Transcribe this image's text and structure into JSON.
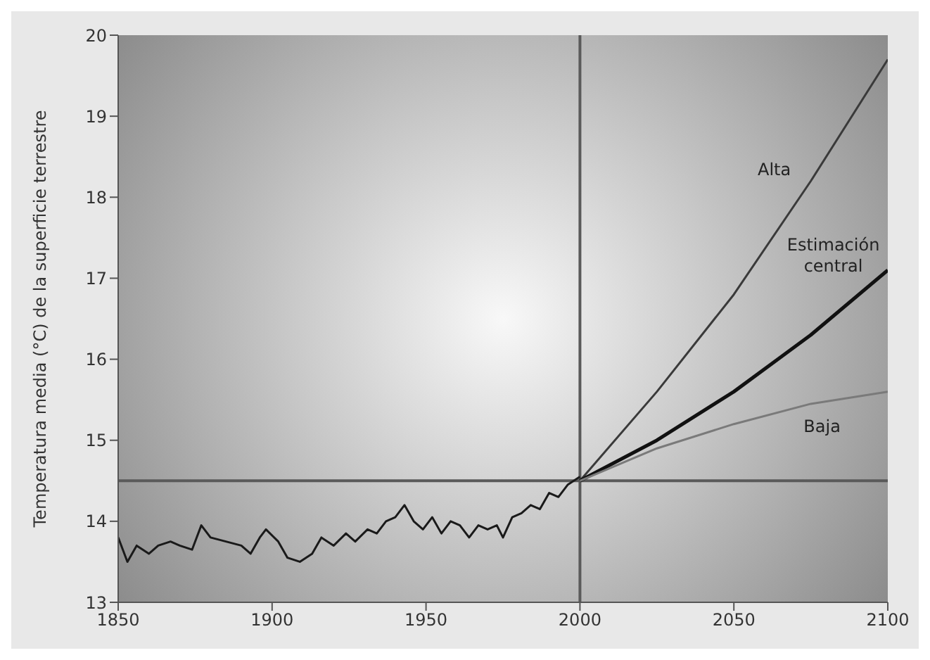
{
  "chart_data": {
    "type": "line",
    "ylabel": "Temperatura media (°C) de la superficie terrestre",
    "xlim": [
      1850,
      2100
    ],
    "xticks": [
      1850,
      1900,
      1950,
      2000,
      2050,
      2100
    ],
    "ylim": [
      13,
      20
    ],
    "yticks": [
      13,
      14,
      15,
      16,
      17,
      18,
      19,
      20
    ],
    "grid": false,
    "legend": false,
    "marker": "none",
    "line_style": "solid",
    "ref_lines": [
      {
        "axis": "x",
        "value": 2000,
        "color": "#5a5a5a"
      },
      {
        "axis": "y",
        "value": 14.5,
        "color": "#5a5a5a"
      }
    ],
    "series": [
      {
        "color": "#1a1a1a",
        "x": [
          1850,
          1853,
          1856,
          1860,
          1863,
          1867,
          1870,
          1874,
          1877,
          1880,
          1885,
          1890,
          1893,
          1896,
          1898,
          1902,
          1905,
          1909,
          1913,
          1916,
          1920,
          1924,
          1927,
          1931,
          1934,
          1937,
          1940,
          1943,
          1946,
          1949,
          1952,
          1955,
          1958,
          1961,
          1964,
          1967,
          1970,
          1973,
          1975,
          1978,
          1981,
          1984,
          1987,
          1990,
          1993,
          1996,
          2000
        ],
        "values": [
          13.8,
          13.5,
          13.7,
          13.6,
          13.7,
          13.75,
          13.7,
          13.65,
          13.95,
          13.8,
          13.75,
          13.7,
          13.6,
          13.8,
          13.9,
          13.75,
          13.55,
          13.5,
          13.6,
          13.8,
          13.7,
          13.85,
          13.75,
          13.9,
          13.85,
          14.0,
          14.05,
          14.2,
          14.0,
          13.9,
          14.05,
          13.85,
          14.0,
          13.95,
          13.8,
          13.95,
          13.9,
          13.95,
          13.8,
          14.05,
          14.1,
          14.2,
          14.15,
          14.35,
          14.3,
          14.45,
          14.55
        ]
      },
      {
        "name": "Alta",
        "color": "#3a3a3a",
        "x": [
          2000,
          2025,
          2050,
          2075,
          2100
        ],
        "values": [
          14.5,
          15.6,
          16.8,
          18.2,
          19.7
        ]
      },
      {
        "name": "Estimación central",
        "color": "#111111",
        "x": [
          2000,
          2025,
          2050,
          2075,
          2100
        ],
        "values": [
          14.5,
          15.0,
          15.6,
          16.3,
          17.1
        ]
      },
      {
        "name": "Baja",
        "color": "#7a7a7a",
        "x": [
          2000,
          2025,
          2050,
          2075,
          2100
        ],
        "values": [
          14.5,
          14.9,
          15.2,
          15.45,
          15.6
        ]
      }
    ]
  }
}
